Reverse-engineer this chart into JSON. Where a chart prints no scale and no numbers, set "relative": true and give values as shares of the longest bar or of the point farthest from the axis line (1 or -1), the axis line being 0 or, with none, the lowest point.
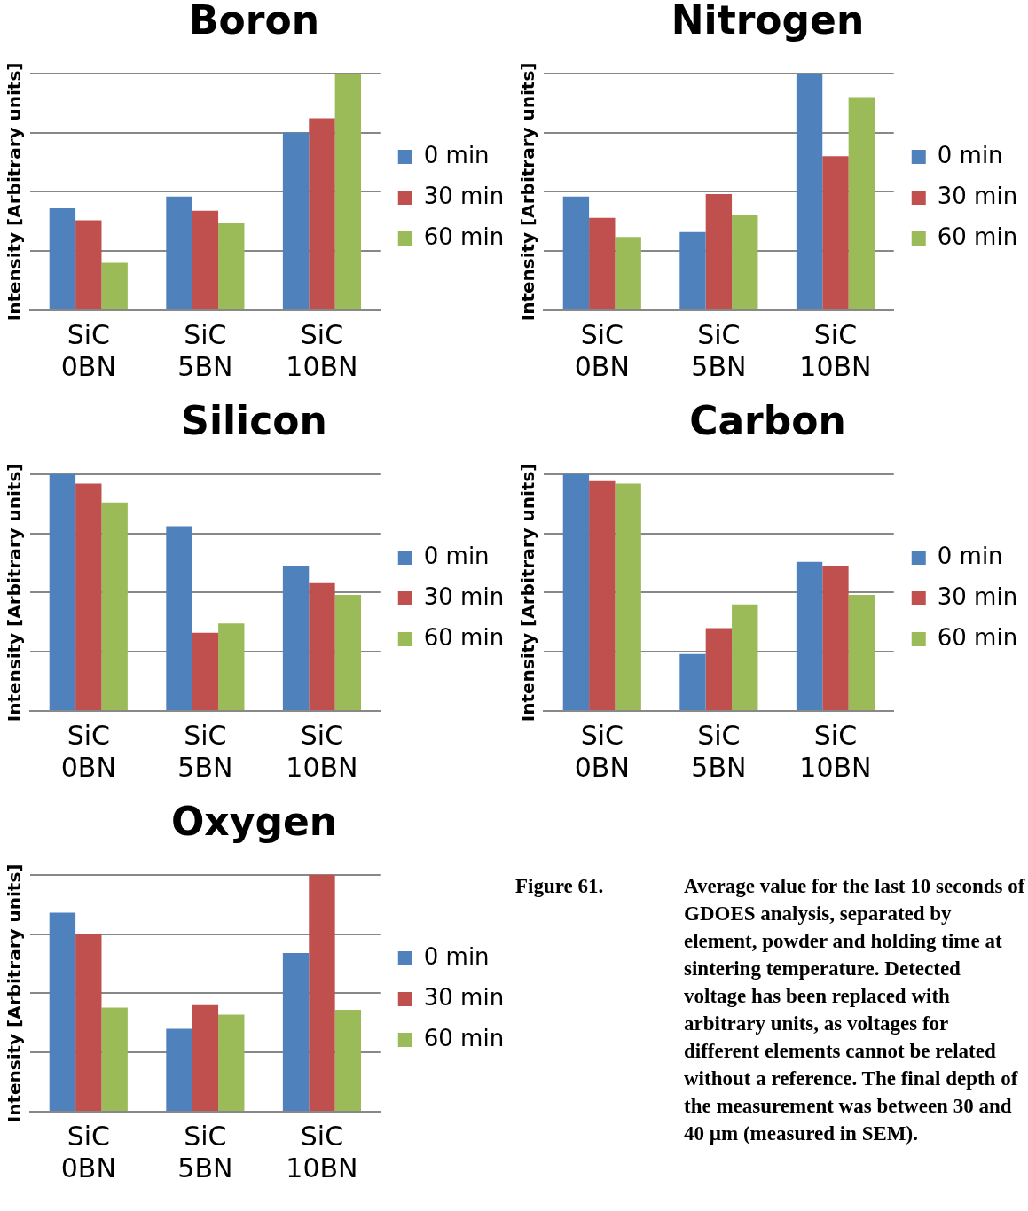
{
  "chart_data": [
    {
      "type": "bar",
      "title": "Boron",
      "ylabel": "Intensity [Arbitrary units]",
      "categories": [
        "SiC 0BN",
        "SiC 5BN",
        "SiC 10BN"
      ],
      "relative": true,
      "grid": "y",
      "legend": "right",
      "series": [
        {
          "name": "0 min",
          "color": "#4f81bd",
          "values": [
            0.43,
            0.48,
            0.75
          ]
        },
        {
          "name": "30 min",
          "color": "#c0504d",
          "values": [
            0.38,
            0.42,
            0.81
          ]
        },
        {
          "name": "60 min",
          "color": "#9bbb59",
          "values": [
            0.2,
            0.37,
            1
          ]
        }
      ]
    },
    {
      "type": "bar",
      "title": "Nitrogen",
      "ylabel": "Intensity [Arbitrary units]",
      "categories": [
        "SiC 0BN",
        "SiC 5BN",
        "SiC 10BN"
      ],
      "relative": true,
      "grid": "y",
      "legend": "right",
      "series": [
        {
          "name": "0 min",
          "color": "#4f81bd",
          "values": [
            0.48,
            0.33,
            1
          ]
        },
        {
          "name": "30 min",
          "color": "#c0504d",
          "values": [
            0.39,
            0.49,
            0.65
          ]
        },
        {
          "name": "60 min",
          "color": "#9bbb59",
          "values": [
            0.31,
            0.4,
            0.9
          ]
        }
      ]
    },
    {
      "type": "bar",
      "title": "Silicon",
      "ylabel": "Intensity [Arbitrary units]",
      "categories": [
        "SiC 0BN",
        "SiC 5BN",
        "SiC 10BN"
      ],
      "relative": true,
      "grid": "y",
      "legend": "right",
      "series": [
        {
          "name": "0 min",
          "color": "#4f81bd",
          "values": [
            1,
            0.78,
            0.61
          ]
        },
        {
          "name": "30 min",
          "color": "#c0504d",
          "values": [
            0.96,
            0.33,
            0.54
          ]
        },
        {
          "name": "60 min",
          "color": "#9bbb59",
          "values": [
            0.88,
            0.37,
            0.49
          ]
        }
      ]
    },
    {
      "type": "bar",
      "title": "Carbon",
      "ylabel": "Intensity [Arbitrary units]",
      "categories": [
        "SiC 0BN",
        "SiC 5BN",
        "SiC 10BN"
      ],
      "relative": true,
      "grid": "y",
      "legend": "right",
      "series": [
        {
          "name": "0 min",
          "color": "#4f81bd",
          "values": [
            1,
            0.24,
            0.63
          ]
        },
        {
          "name": "30 min",
          "color": "#c0504d",
          "values": [
            0.97,
            0.35,
            0.61
          ]
        },
        {
          "name": "60 min",
          "color": "#9bbb59",
          "values": [
            0.96,
            0.45,
            0.49
          ]
        }
      ]
    },
    {
      "type": "bar",
      "title": "Oxygen",
      "ylabel": "Intensity [Arbitrary units]",
      "categories": [
        "SiC 0BN",
        "SiC 5BN",
        "SiC 10BN"
      ],
      "relative": true,
      "grid": "y",
      "legend": "right",
      "series": [
        {
          "name": "0 min",
          "color": "#4f81bd",
          "values": [
            0.84,
            0.35,
            0.67
          ]
        },
        {
          "name": "30 min",
          "color": "#c0504d",
          "values": [
            0.75,
            0.45,
            1
          ]
        },
        {
          "name": "60 min",
          "color": "#9bbb59",
          "values": [
            0.44,
            0.41,
            0.43
          ]
        }
      ]
    },
    {
      "type": "other",
      "annotations": [
        "Figure 61.",
        "Average value for the last 10 seconds of GDOES analysis, separated by element, powder and holding time at sintering temperature. Detected voltage has been replaced with arbitrary units, as voltages for different elements cannot be related without a reference. The final depth of the measurement was between 30 and 40 µm (measured in SEM)."
      ]
    }
  ]
}
